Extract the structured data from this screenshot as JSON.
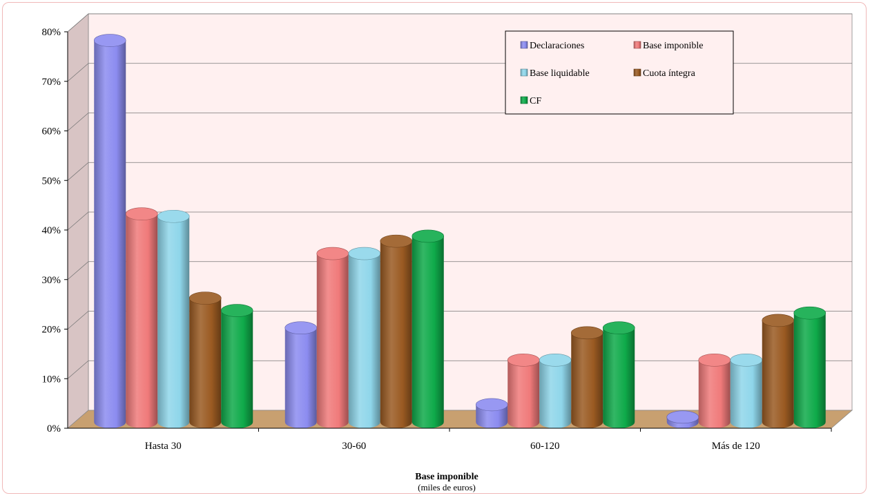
{
  "chart_data": {
    "type": "bar",
    "categories": [
      "Hasta 30",
      "30-60",
      "60-120",
      "Más de 120"
    ],
    "series": [
      {
        "name": "Declaraciones",
        "values": [
          77,
          19,
          3.5,
          1
        ],
        "color": "#8c8cf0"
      },
      {
        "name": "Base imponible",
        "values": [
          42,
          34,
          12.5,
          12.5
        ],
        "color": "#f07a7a"
      },
      {
        "name": "Base liquidable",
        "values": [
          41.5,
          34,
          12.5,
          12.5
        ],
        "color": "#8fd6ea"
      },
      {
        "name": "Cuota íntegra",
        "values": [
          25,
          36.5,
          18,
          20.5
        ],
        "color": "#9a5a22"
      },
      {
        "name": "CF",
        "values": [
          22.5,
          37.5,
          19,
          22
        ],
        "color": "#0faa4a"
      }
    ],
    "yticks": [
      "0%",
      "10%",
      "20%",
      "30%",
      "40%",
      "50%",
      "60%",
      "70%",
      "80%"
    ],
    "ylim": [
      0,
      80
    ],
    "xlabel": "Base imponible",
    "xlabel_sub": "(miles de euros)",
    "legend_position": "top-right",
    "grid": true,
    "wall_color": "#fff0f0",
    "floor_color": "#c8a070"
  }
}
